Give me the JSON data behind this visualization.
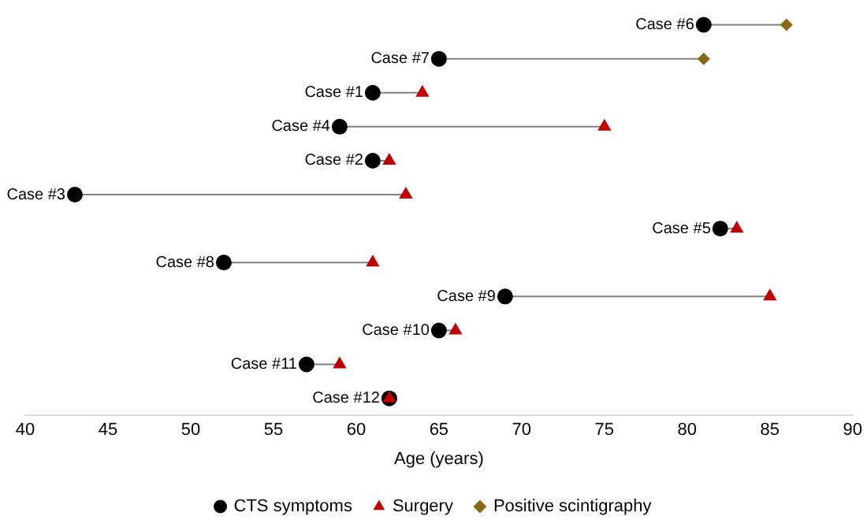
{
  "chart_data": {
    "type": "scatter",
    "orientation": "horizontal",
    "xlabel": "Age (years)",
    "categories": [
      "Case #6",
      "Case #7",
      "Case #1",
      "Case #4",
      "Case #2",
      "Case #3",
      "Case #5",
      "Case #8",
      "Case #9",
      "Case #10",
      "Case #11",
      "Case #12"
    ],
    "series": [
      {
        "name": "CTS symptoms",
        "color": "#000000",
        "marker": "circle",
        "values": [
          81,
          65,
          61,
          59,
          61,
          43,
          82,
          52,
          69,
          65,
          57,
          62
        ]
      },
      {
        "name": "Surgery",
        "color": "#c00000",
        "marker": "triangle",
        "values": [
          null,
          null,
          64,
          75,
          62,
          63,
          83,
          61,
          85,
          66,
          59,
          62
        ]
      },
      {
        "name": "Positive scintigraphy",
        "color": "#8b6914",
        "marker": "diamond",
        "values": [
          86,
          81,
          null,
          null,
          null,
          null,
          null,
          null,
          null,
          null,
          null,
          null
        ]
      }
    ],
    "xlim": [
      40,
      90
    ],
    "xticks": [
      40,
      45,
      50,
      55,
      60,
      65,
      70,
      75,
      80,
      85,
      90
    ],
    "grid": false,
    "legend": "bottom"
  }
}
